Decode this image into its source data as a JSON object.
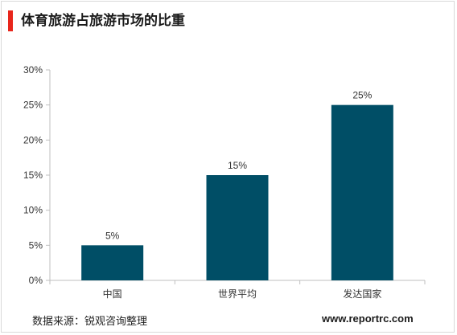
{
  "header": {
    "title": "体育旅游占旅游市场的比重"
  },
  "footer": {
    "source": "数据来源：锐观咨询整理",
    "url": "www.reportrc.com"
  },
  "colors": {
    "bar": "#004e66",
    "accent": "#e8261c",
    "axis": "#bfbfbf",
    "text": "#333333"
  },
  "chart_data": {
    "type": "bar",
    "title": "",
    "xlabel": "",
    "ylabel": "",
    "categories": [
      "中国",
      "世界平均",
      "发达国家"
    ],
    "values": [
      5,
      15,
      25
    ],
    "value_labels": [
      "5%",
      "15%",
      "25%"
    ],
    "ylim": [
      0,
      30
    ],
    "yticks": [
      0,
      5,
      10,
      15,
      20,
      25,
      30
    ],
    "ytick_labels": [
      "0%",
      "5%",
      "10%",
      "15%",
      "20%",
      "25%",
      "30%"
    ],
    "grid": false,
    "legend": "none"
  }
}
